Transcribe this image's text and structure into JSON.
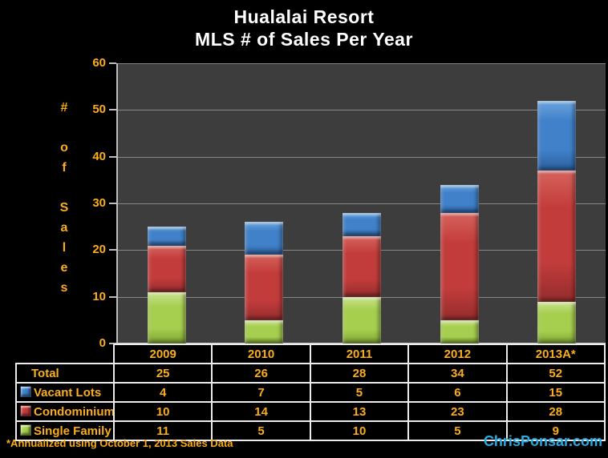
{
  "title": {
    "line1": "Hualalai Resort",
    "line2": "MLS # of Sales Per Year"
  },
  "y_axis": {
    "vertical_title": "#\n\no\nf\n\nS\na\nl\ne\ns",
    "ticks": [
      60,
      50,
      40,
      30,
      20,
      10,
      0
    ]
  },
  "chart_data": {
    "type": "bar",
    "stacked": true,
    "title": "Hualalai Resort MLS # of Sales Per Year",
    "ylabel": "# of Sales",
    "ylim": [
      0,
      60
    ],
    "grid": true,
    "legend_position": "table-row-labels",
    "categories": [
      "2009",
      "2010",
      "2011",
      "2012",
      "2013A*"
    ],
    "series": [
      {
        "name": "Single Family",
        "values": [
          11,
          5,
          10,
          5,
          9
        ],
        "color": "#A6CF4F",
        "color_light": "#C9E38C",
        "color_dark": "#7EA332"
      },
      {
        "name": "Condominiums",
        "values": [
          10,
          14,
          13,
          23,
          28
        ],
        "color": "#C33C3C",
        "color_light": "#D5635C",
        "color_dark": "#932C2C"
      },
      {
        "name": "Vacant Lots",
        "values": [
          4,
          7,
          5,
          6,
          15
        ],
        "color": "#4181C9",
        "color_light": "#6CA5DF",
        "color_dark": "#2B5E9D"
      }
    ],
    "totals": [
      25,
      26,
      28,
      34,
      52
    ]
  },
  "table": {
    "year_headers": [
      "2009",
      "2010",
      "2011",
      "2012",
      "2013A*"
    ],
    "rows": [
      {
        "label": "Total",
        "swatch": null,
        "values": [
          "25",
          "26",
          "28",
          "34",
          "52"
        ]
      },
      {
        "label": "Vacant Lots",
        "swatch": "Vacant Lots",
        "values": [
          "4",
          "7",
          "5",
          "6",
          "15"
        ]
      },
      {
        "label": "Condominiums",
        "swatch": "Condominiums",
        "values": [
          "10",
          "14",
          "13",
          "23",
          "28"
        ]
      },
      {
        "label": "Single Family",
        "swatch": "Single Family",
        "values": [
          "11",
          "5",
          "10",
          "5",
          "9"
        ]
      }
    ]
  },
  "footnote": "*Annualized using October 1, 2013 Sales Data",
  "attribution": "ChrisPonsar.com",
  "colors": {
    "background": "#000000",
    "plot_background": "#3D3D3D",
    "gridline": "#878787",
    "axis_line": "#BDBDBD",
    "gold_text": "#FBAD1A",
    "title_text": "#FFFFFF",
    "attribution_blue": "#29ABE2",
    "table_border": "#ECECEC"
  }
}
